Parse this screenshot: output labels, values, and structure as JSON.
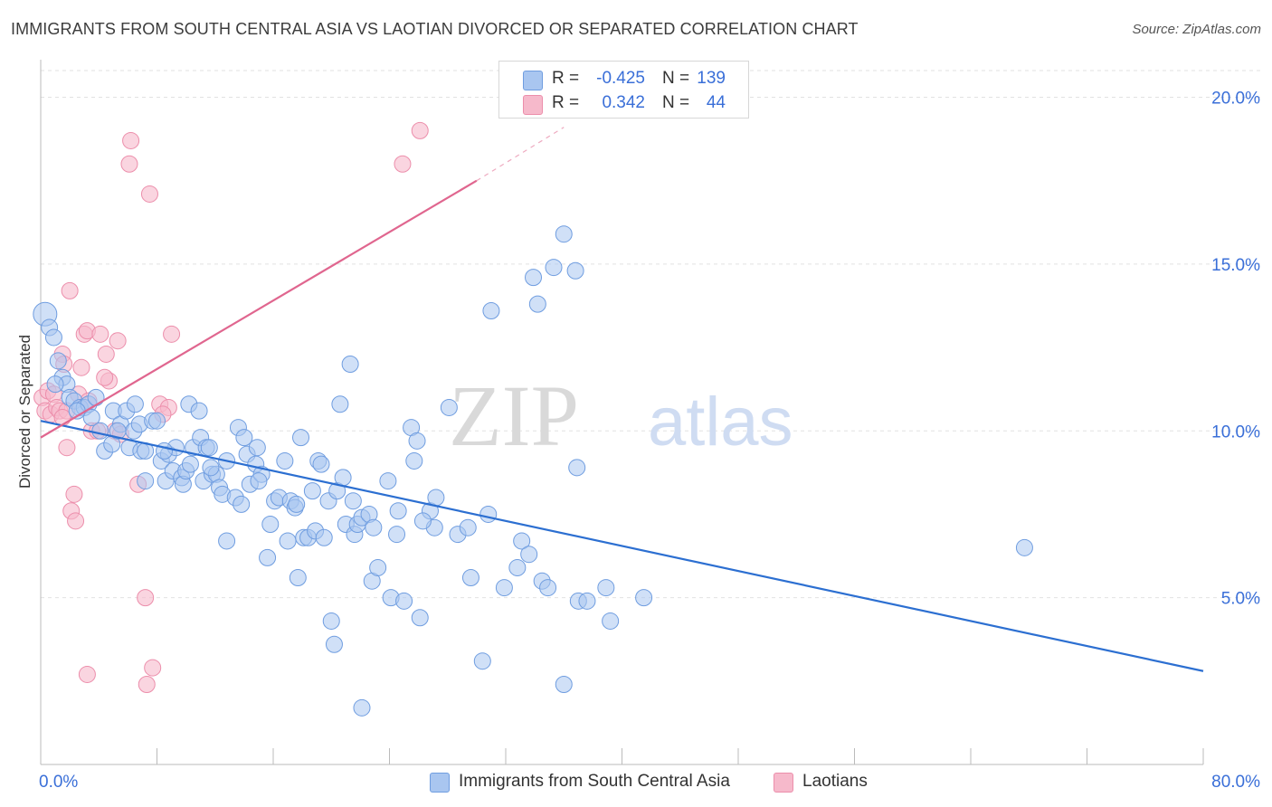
{
  "title": "IMMIGRANTS FROM SOUTH CENTRAL ASIA VS LAOTIAN DIVORCED OR SEPARATED CORRELATION CHART",
  "source": "Source: ZipAtlas.com",
  "watermark": {
    "zip": "ZIP",
    "atlas": "atlas"
  },
  "colors": {
    "blue_fill": "#a9c6f0",
    "blue_stroke": "#6f9de0",
    "blue_line": "#2c6fd1",
    "pink_fill": "#f6b9cb",
    "pink_stroke": "#ec8eab",
    "pink_line": "#e0668f",
    "axis_text": "#3a6fd8",
    "grid": "#e2e2e2"
  },
  "legend": {
    "series": [
      {
        "r_label": "R =",
        "r_value": "-0.425",
        "n_label": "N =",
        "n_value": "139",
        "color": "#a9c6f0",
        "border": "#6f9de0"
      },
      {
        "r_label": "R =",
        "r_value": "0.342",
        "n_label": "N =",
        "n_value": "44",
        "color": "#f6b9cb",
        "border": "#ec8eab"
      }
    ]
  },
  "bottom_legend": [
    {
      "label": "Immigrants from South Central Asia",
      "color": "#a9c6f0",
      "border": "#6f9de0"
    },
    {
      "label": "Laotians",
      "color": "#f6b9cb",
      "border": "#ec8eab"
    }
  ],
  "chart_data": {
    "type": "scatter",
    "title": "IMMIGRANTS FROM SOUTH CENTRAL ASIA VS LAOTIAN DIVORCED OR SEPARATED CORRELATION CHART",
    "xlabel": "",
    "ylabel": "Divorced or Separated",
    "xlim": [
      0,
      80
    ],
    "ylim": [
      0,
      20.8
    ],
    "x_tick_labels": [
      "0.0%",
      "80.0%"
    ],
    "y_ticks": [
      5,
      10,
      15,
      20
    ],
    "y_tick_labels": [
      "5.0%",
      "10.0%",
      "15.0%",
      "20.0%"
    ],
    "grid": true,
    "legend_position": "top-center",
    "series": [
      {
        "name": "Immigrants from South Central Asia",
        "color": "#a9c6f0",
        "trend": {
          "x": [
            0,
            80
          ],
          "y": [
            10.3,
            2.8
          ]
        },
        "points": [
          [
            0.3,
            13.5
          ],
          [
            0.6,
            13.1
          ],
          [
            0.9,
            12.8
          ],
          [
            1.2,
            12.1
          ],
          [
            1.5,
            11.6
          ],
          [
            1.8,
            11.4
          ],
          [
            2.0,
            11.0
          ],
          [
            2.3,
            10.9
          ],
          [
            2.7,
            10.7
          ],
          [
            3.0,
            10.7
          ],
          [
            3.3,
            10.8
          ],
          [
            3.8,
            11.0
          ],
          [
            3.5,
            10.4
          ],
          [
            4.1,
            10.0
          ],
          [
            4.4,
            9.4
          ],
          [
            4.9,
            9.6
          ],
          [
            5.0,
            10.6
          ],
          [
            5.5,
            10.2
          ],
          [
            5.9,
            10.6
          ],
          [
            6.1,
            9.5
          ],
          [
            6.4,
            10.0
          ],
          [
            6.8,
            10.2
          ],
          [
            6.9,
            9.4
          ],
          [
            7.2,
            9.4
          ],
          [
            7.2,
            8.5
          ],
          [
            7.7,
            10.3
          ],
          [
            8.0,
            10.3
          ],
          [
            8.3,
            9.1
          ],
          [
            8.6,
            8.5
          ],
          [
            8.8,
            9.3
          ],
          [
            9.1,
            8.8
          ],
          [
            9.3,
            9.5
          ],
          [
            9.7,
            8.6
          ],
          [
            9.8,
            8.4
          ],
          [
            10.0,
            8.8
          ],
          [
            10.2,
            10.8
          ],
          [
            10.3,
            9.0
          ],
          [
            10.5,
            9.5
          ],
          [
            10.9,
            10.6
          ],
          [
            11.0,
            9.8
          ],
          [
            11.2,
            8.5
          ],
          [
            11.4,
            9.5
          ],
          [
            11.6,
            9.5
          ],
          [
            11.8,
            8.7
          ],
          [
            12.1,
            8.7
          ],
          [
            12.3,
            8.3
          ],
          [
            12.5,
            8.1
          ],
          [
            12.8,
            9.1
          ],
          [
            12.8,
            6.7
          ],
          [
            13.4,
            8.0
          ],
          [
            13.6,
            10.1
          ],
          [
            13.8,
            7.8
          ],
          [
            14.0,
            9.8
          ],
          [
            14.2,
            9.3
          ],
          [
            14.4,
            8.4
          ],
          [
            14.8,
            9.0
          ],
          [
            14.9,
            9.5
          ],
          [
            15.2,
            8.7
          ],
          [
            15.6,
            6.2
          ],
          [
            15.8,
            7.2
          ],
          [
            16.1,
            7.9
          ],
          [
            16.4,
            8.0
          ],
          [
            16.8,
            9.1
          ],
          [
            17.0,
            6.7
          ],
          [
            17.2,
            7.9
          ],
          [
            17.5,
            7.7
          ],
          [
            17.7,
            5.6
          ],
          [
            17.9,
            9.8
          ],
          [
            18.1,
            6.8
          ],
          [
            18.4,
            6.8
          ],
          [
            18.7,
            8.2
          ],
          [
            18.9,
            7.0
          ],
          [
            19.1,
            9.1
          ],
          [
            19.3,
            9.0
          ],
          [
            19.5,
            6.8
          ],
          [
            19.8,
            7.9
          ],
          [
            20.0,
            4.3
          ],
          [
            20.2,
            3.6
          ],
          [
            20.4,
            8.2
          ],
          [
            20.6,
            10.8
          ],
          [
            20.8,
            8.6
          ],
          [
            21.0,
            7.2
          ],
          [
            21.3,
            12.0
          ],
          [
            21.5,
            7.9
          ],
          [
            21.6,
            6.9
          ],
          [
            21.8,
            7.2
          ],
          [
            22.1,
            7.4
          ],
          [
            22.1,
            1.7
          ],
          [
            22.6,
            7.5
          ],
          [
            22.8,
            5.5
          ],
          [
            23.2,
            5.9
          ],
          [
            23.9,
            8.5
          ],
          [
            24.1,
            5.0
          ],
          [
            24.5,
            6.9
          ],
          [
            24.6,
            7.6
          ],
          [
            25.0,
            4.9
          ],
          [
            25.5,
            10.1
          ],
          [
            25.7,
            9.1
          ],
          [
            25.9,
            9.7
          ],
          [
            26.1,
            4.4
          ],
          [
            26.8,
            7.6
          ],
          [
            27.1,
            7.1
          ],
          [
            27.2,
            8.0
          ],
          [
            28.1,
            10.7
          ],
          [
            28.7,
            6.9
          ],
          [
            29.4,
            7.1
          ],
          [
            29.6,
            5.6
          ],
          [
            30.4,
            3.1
          ],
          [
            30.8,
            7.5
          ],
          [
            31.0,
            13.6
          ],
          [
            31.9,
            5.3
          ],
          [
            32.8,
            5.9
          ],
          [
            33.1,
            6.7
          ],
          [
            33.6,
            6.3
          ],
          [
            33.9,
            14.6
          ],
          [
            34.2,
            13.8
          ],
          [
            34.5,
            5.5
          ],
          [
            34.9,
            5.3
          ],
          [
            35.3,
            14.9
          ],
          [
            36.0,
            15.9
          ],
          [
            36.0,
            2.4
          ],
          [
            36.8,
            14.8
          ],
          [
            36.9,
            8.9
          ],
          [
            37.0,
            4.9
          ],
          [
            37.6,
            4.9
          ],
          [
            38.9,
            5.3
          ],
          [
            39.2,
            4.3
          ],
          [
            41.5,
            5.0
          ],
          [
            67.7,
            6.5
          ],
          [
            1.0,
            11.4
          ],
          [
            2.5,
            10.6
          ],
          [
            5.3,
            10.0
          ],
          [
            6.5,
            10.8
          ],
          [
            8.5,
            9.4
          ],
          [
            11.7,
            8.9
          ],
          [
            15.0,
            8.5
          ],
          [
            17.6,
            7.8
          ],
          [
            22.9,
            7.1
          ],
          [
            26.3,
            7.3
          ]
        ]
      },
      {
        "name": "Laotians",
        "color": "#f6b9cb",
        "trend": {
          "x": [
            0,
            30
          ],
          "y": [
            9.8,
            17.5
          ]
        },
        "trend_dashed": {
          "x": [
            30,
            36
          ],
          "y": [
            17.5,
            19.1
          ]
        },
        "points": [
          [
            0.1,
            11.0
          ],
          [
            0.3,
            10.6
          ],
          [
            0.5,
            11.2
          ],
          [
            0.7,
            10.5
          ],
          [
            0.9,
            11.1
          ],
          [
            1.1,
            10.7
          ],
          [
            1.3,
            10.6
          ],
          [
            1.5,
            12.3
          ],
          [
            1.6,
            12.0
          ],
          [
            1.8,
            9.5
          ],
          [
            2.0,
            14.2
          ],
          [
            2.1,
            7.6
          ],
          [
            2.3,
            8.1
          ],
          [
            2.4,
            7.3
          ],
          [
            2.6,
            11.1
          ],
          [
            2.8,
            11.9
          ],
          [
            3.0,
            12.9
          ],
          [
            3.2,
            13.0
          ],
          [
            3.3,
            10.9
          ],
          [
            3.5,
            10.0
          ],
          [
            3.9,
            10.0
          ],
          [
            4.1,
            12.9
          ],
          [
            4.5,
            12.3
          ],
          [
            4.7,
            11.5
          ],
          [
            5.1,
            10.0
          ],
          [
            5.3,
            12.7
          ],
          [
            5.5,
            9.9
          ],
          [
            6.1,
            18.0
          ],
          [
            6.2,
            18.7
          ],
          [
            6.7,
            8.4
          ],
          [
            7.2,
            5.0
          ],
          [
            7.5,
            17.1
          ],
          [
            7.7,
            2.9
          ],
          [
            7.3,
            2.4
          ],
          [
            8.2,
            10.8
          ],
          [
            8.8,
            10.7
          ],
          [
            9.0,
            12.9
          ],
          [
            8.4,
            10.5
          ],
          [
            3.2,
            2.7
          ],
          [
            1.8,
            10.6
          ],
          [
            1.5,
            10.4
          ],
          [
            24.9,
            18.0
          ],
          [
            26.1,
            19.0
          ],
          [
            4.4,
            11.6
          ]
        ]
      }
    ]
  }
}
